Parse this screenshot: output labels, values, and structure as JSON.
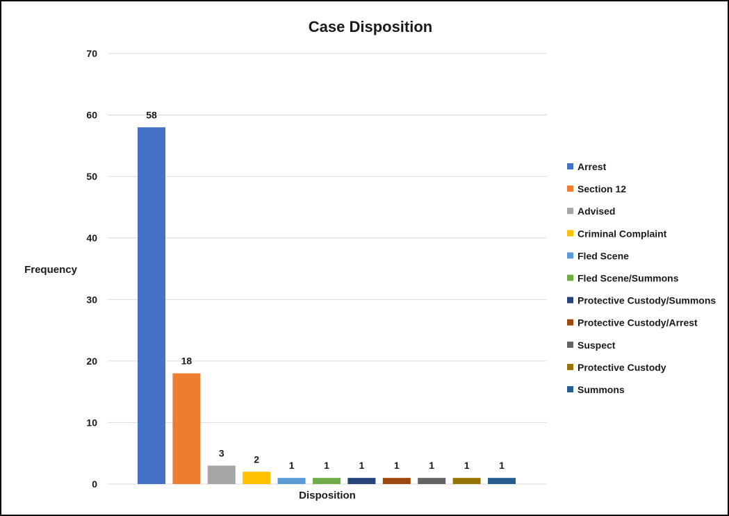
{
  "chart_data": {
    "type": "bar",
    "title": "Case Disposition",
    "xlabel": "Disposition",
    "ylabel": "Frequency",
    "ylim": [
      0,
      70
    ],
    "yticks": [
      0,
      10,
      20,
      30,
      40,
      50,
      60,
      70
    ],
    "grid": true,
    "legend_position": "right",
    "categories": [
      "Arrest",
      "Section 12",
      "Advised",
      "Criminal Complaint",
      "Fled Scene",
      "Fled Scene/Summons",
      "Protective Custody/Summons",
      "Protective Custody/Arrest",
      "Suspect",
      "Protective Custody",
      "Summons"
    ],
    "values": [
      58,
      18,
      3,
      2,
      1,
      1,
      1,
      1,
      1,
      1,
      1
    ],
    "colors": [
      "#4472C4",
      "#ED7D31",
      "#A5A5A5",
      "#FFC000",
      "#5B9BD5",
      "#70AD47",
      "#264478",
      "#9E480E",
      "#636363",
      "#997300",
      "#255E91"
    ]
  }
}
